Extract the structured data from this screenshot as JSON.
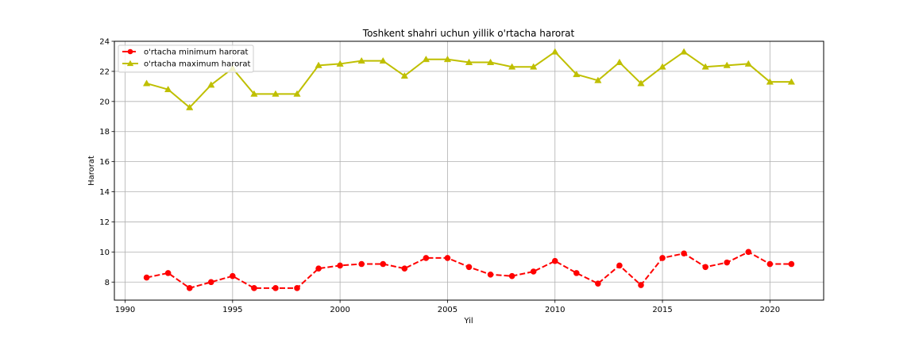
{
  "chart_data": {
    "type": "line",
    "title": "Toshkent shahri uchun yillik o'rtacha harorat",
    "xlabel": "Yil",
    "ylabel": "Harorat",
    "xlim": [
      1989.5,
      2022.5
    ],
    "ylim": [
      6.8,
      24.0
    ],
    "xticks": [
      1990,
      1995,
      2000,
      2005,
      2010,
      2015,
      2020
    ],
    "yticks": [
      8,
      10,
      12,
      14,
      16,
      18,
      20,
      22,
      24
    ],
    "grid": true,
    "legend_position": "upper-left",
    "x": [
      1991,
      1992,
      1993,
      1994,
      1995,
      1996,
      1997,
      1998,
      1999,
      2000,
      2001,
      2002,
      2003,
      2004,
      2005,
      2006,
      2007,
      2008,
      2009,
      2010,
      2011,
      2012,
      2013,
      2014,
      2015,
      2016,
      2017,
      2018,
      2019,
      2020,
      2021
    ],
    "series": [
      {
        "name": "o'rtacha minimum harorat",
        "color": "#ff0000",
        "line_style": "dashed",
        "marker": "circle",
        "values": [
          8.3,
          8.6,
          7.6,
          8.0,
          8.4,
          7.6,
          7.6,
          7.6,
          8.9,
          9.1,
          9.2,
          9.2,
          8.9,
          9.6,
          9.6,
          9.0,
          8.5,
          8.4,
          8.7,
          9.4,
          8.6,
          7.9,
          9.1,
          7.8,
          9.6,
          9.9,
          9.0,
          9.3,
          10.0,
          9.2,
          9.2
        ]
      },
      {
        "name": "o'rtacha maximum harorat",
        "color": "#bfbf00",
        "line_style": "solid",
        "marker": "triangle",
        "values": [
          21.2,
          20.8,
          19.6,
          21.1,
          22.2,
          20.5,
          20.5,
          20.5,
          22.4,
          22.5,
          22.7,
          22.7,
          21.7,
          22.8,
          22.8,
          22.6,
          22.6,
          22.3,
          22.3,
          23.3,
          21.8,
          21.4,
          22.6,
          21.2,
          22.3,
          23.3,
          22.3,
          22.4,
          22.5,
          21.3,
          21.3
        ]
      }
    ]
  }
}
